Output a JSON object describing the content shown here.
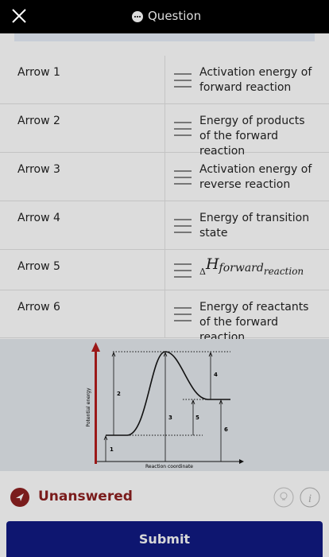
{
  "header": {
    "title": "Question"
  },
  "rows": [
    {
      "label": "Arrow 1",
      "answer": "Activation energy of forward reaction"
    },
    {
      "label": "Arrow 2",
      "answer": "Energy of products of the forward reaction"
    },
    {
      "label": "Arrow 3",
      "answer": "Activation energy of reverse reaction"
    },
    {
      "label": "Arrow 4",
      "answer": "Energy of transition state"
    },
    {
      "label": "Arrow 5",
      "answer": {
        "delta": "Δ",
        "symbol": "H",
        "subscript": "forward",
        "subscript2": "reaction"
      }
    },
    {
      "label": "Arrow 6",
      "answer": "Energy of reactants of the forward reaction"
    }
  ],
  "diagram": {
    "y_label": "Potential energy",
    "x_label": "Reaction coordinate",
    "arrow_labels": [
      "1",
      "2",
      "3",
      "4",
      "5",
      "6"
    ]
  },
  "footer": {
    "status": "Unanswered",
    "submit": "Submit"
  }
}
